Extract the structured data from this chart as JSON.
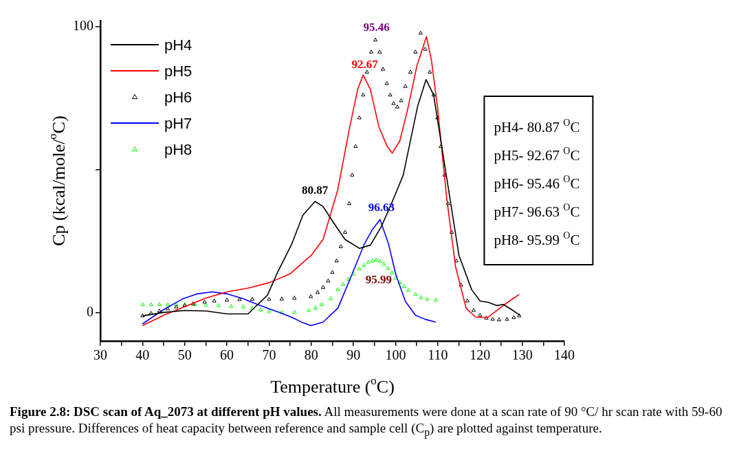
{
  "chart_data": {
    "type": "line",
    "xlabel": "Temperature ($^{o}$C)",
    "ylabel": "Cp (kcal/mole/$^{o}$C)",
    "xlim": [
      30,
      140
    ],
    "xticks": [
      30,
      {
        "value": 35,
        "label": null
      },
      40,
      {
        "value": 45,
        "label": null
      },
      50,
      {
        "value": 55,
        "label": null
      },
      60,
      {
        "value": 65,
        "label": null
      },
      70,
      {
        "value": 75,
        "label": null
      },
      80,
      {
        "value": 85,
        "label": null
      },
      90,
      {
        "value": 95,
        "label": null
      },
      100,
      {
        "value": 105,
        "label": null
      },
      110,
      {
        "value": 115,
        "label": null
      },
      120,
      {
        "value": 125,
        "label": null
      },
      130,
      {
        "value": 135,
        "label": null
      },
      140
    ],
    "ylim": [
      -10,
      102
    ],
    "yticks": [
      0,
      {
        "value": 50,
        "label": null
      },
      100
    ],
    "grid": false,
    "legend": "top left",
    "series": [
      {
        "name": "pH4",
        "type": "line",
        "marker": "none",
        "color": "#000000",
        "x": [
          40,
          45,
          50,
          55,
          60,
          65,
          69.6,
          72,
          75.4,
          78,
          80.9,
          82.8,
          85,
          88,
          91.4,
          94,
          96.6,
          99,
          101.8,
          105.2,
          107.2,
          109,
          110.5,
          112,
          115,
          118,
          120,
          122,
          124,
          125.5,
          127.5,
          129.5
        ],
        "values": [
          -1.2,
          0,
          0.7,
          0.5,
          -0.5,
          -0.5,
          6,
          14,
          24,
          34,
          38.8,
          37,
          32,
          25.5,
          22.4,
          23.5,
          30,
          38,
          48,
          72,
          81.4,
          76,
          62,
          48,
          20,
          8,
          4,
          3.5,
          2.4,
          2.8,
          1,
          -1
        ]
      },
      {
        "name": "pH5",
        "type": "line",
        "marker": "none",
        "color": "#ff0000",
        "x": [
          40,
          45,
          50,
          55,
          60,
          65,
          70,
          75,
          80,
          82.8,
          86.3,
          89,
          91,
          92.3,
          94,
          96,
          98,
          99.2,
          101,
          103,
          105,
          107.3,
          108.5,
          109.9,
          112.1,
          114.2,
          116.7,
          119,
          121.9,
          124.7,
          127,
          129.3
        ],
        "values": [
          -4.6,
          -1,
          2,
          5,
          7.2,
          8.5,
          10.4,
          13.5,
          20,
          25.5,
          43,
          64,
          78,
          83,
          78,
          65,
          58,
          55.7,
          60,
          72,
          86,
          96.4,
          88,
          72,
          40,
          16,
          1.5,
          -1.7,
          -1.7,
          1.5,
          4,
          6.3
        ]
      },
      {
        "name": "pH6",
        "type": "scatter",
        "marker": "triangle",
        "color": "#000000",
        "x": [
          40,
          42,
          44,
          46,
          48,
          50,
          52,
          54.7,
          57,
          60,
          63,
          66,
          70,
          73,
          76,
          79.9,
          81.5,
          82.8,
          84,
          85,
          86,
          87,
          88,
          89,
          89.7,
          90.5,
          91.4,
          92.3,
          93.2,
          94.2,
          95.2,
          96.2,
          97,
          97.9,
          98.7,
          99.5,
          100.4,
          101.3,
          102.3,
          103.5,
          104.7,
          105.9,
          107,
          108.1,
          109,
          109.9,
          110.7,
          111.6,
          112.4,
          113.3,
          114.4,
          115.5,
          117,
          118.5,
          120,
          121.5,
          123,
          124.5,
          126.4,
          128,
          129.3
        ],
        "values": [
          -1.2,
          -0.3,
          0.5,
          1.2,
          1.9,
          2.4,
          3,
          3.6,
          4,
          4.3,
          4.5,
          4.6,
          4.6,
          4.7,
          5,
          5.5,
          7,
          8.7,
          11,
          14,
          18,
          23,
          28,
          38,
          48,
          58,
          68,
          76,
          84,
          91,
          95.2,
          91,
          85,
          80,
          76,
          73,
          71.8,
          74,
          79,
          84,
          91,
          97.6,
          92,
          84,
          76,
          68,
          58,
          48,
          38,
          28,
          18,
          9.6,
          4,
          0.7,
          -1,
          -2,
          -2.4,
          -2.6,
          -2.4,
          -1.8,
          -1.2
        ]
      },
      {
        "name": "pH7",
        "type": "line",
        "marker": "none",
        "color": "#0000ff",
        "x": [
          40,
          45,
          49.6,
          53,
          56.5,
          60,
          63.9,
          66.5,
          69.6,
          72.5,
          75.4,
          78,
          79.9,
          82.8,
          86.3,
          89.7,
          92.6,
          94.5,
          96.3,
          98.3,
          100,
          102.3,
          104.7,
          107,
          109.5
        ],
        "values": [
          -4,
          1,
          4.8,
          6.5,
          7.2,
          6.5,
          4.8,
          3.2,
          1.5,
          0,
          -1.7,
          -3.6,
          -4.6,
          -3.4,
          1.5,
          13.5,
          24,
          29,
          32.5,
          24,
          13.5,
          3.9,
          -1,
          -2.4,
          -3.4
        ]
      },
      {
        "name": "pH8",
        "type": "scatter",
        "marker": "triangle",
        "color": "#00ff00",
        "x": [
          40,
          42,
          44,
          46,
          48,
          50,
          52.4,
          55,
          58,
          61,
          63.9,
          66,
          68,
          70,
          73,
          76,
          79.4,
          81,
          82.5,
          84.6,
          86.3,
          87.5,
          88.8,
          90,
          91.4,
          92.5,
          93.5,
          94.5,
          95.4,
          96.3,
          97.2,
          98.2,
          99.1,
          100,
          101,
          102,
          103,
          104.7,
          106,
          107.5,
          109.5
        ],
        "values": [
          2.7,
          2.7,
          2.7,
          2.7,
          2.7,
          2.7,
          2.7,
          2.6,
          2.4,
          2.1,
          1.9,
          1.4,
          0.9,
          0.4,
          0,
          0,
          0.7,
          1.5,
          2.8,
          4.8,
          8,
          9.8,
          11.6,
          13.4,
          15.2,
          16.5,
          17.5,
          18,
          18.3,
          17.8,
          16.8,
          15.4,
          13.8,
          12,
          10.4,
          9,
          7.7,
          6.3,
          5.2,
          4.6,
          4.3
        ]
      }
    ],
    "annotations": [
      {
        "text": "80.87",
        "x": 80.87,
        "y": 39
      },
      {
        "text": "92.67",
        "x": 92.67,
        "y": 83
      },
      {
        "text": "95.46",
        "x": 95.46,
        "y": 96
      },
      {
        "text": "96.63",
        "x": 96.63,
        "y": 33
      },
      {
        "text": "95.99",
        "x": 95.99,
        "y": 18.3
      },
      "pH4- 80.87 $^{O}$C",
      "pH5- 92.67 $^{O}$C",
      "pH6- 95.46 $^{O}$C",
      "pH7- 96.63 $^{O}$C",
      "pH8- 95.99 $^{O}$C",
      "Figure 2.8: DSC scan of Aq_2073 at different pH values. All measurements were done at a scan rate of 90 °C/ hr scan rate with 59-60 psi pressure. Differences of heat capacity between reference and sample cell (C$_{p}$) are plotted against temperature."
    ]
  }
}
